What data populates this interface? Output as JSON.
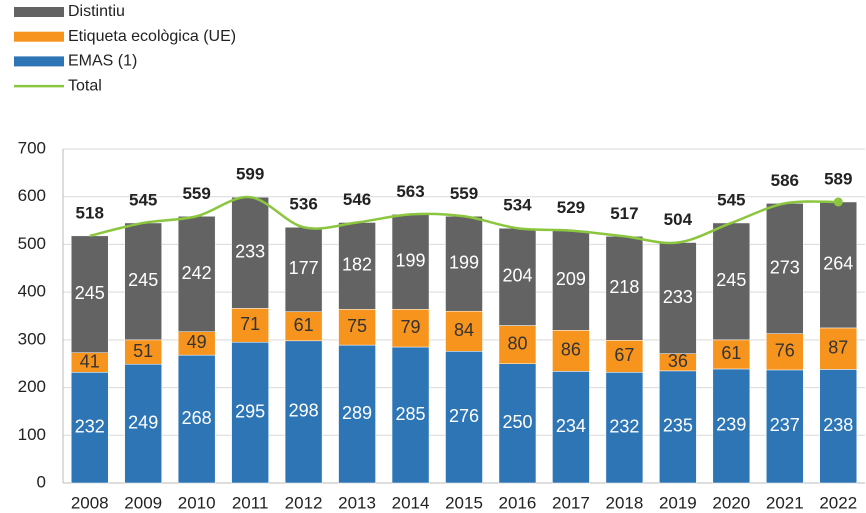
{
  "chart_data": {
    "type": "bar",
    "stacked": true,
    "categories": [
      "2008",
      "2009",
      "2010",
      "2011",
      "2012",
      "2013",
      "2014",
      "2015",
      "2016",
      "2017",
      "2018",
      "2019",
      "2020",
      "2021",
      "2022"
    ],
    "series": [
      {
        "name": "Distintiu",
        "color": "#636363",
        "label_color": "#ffffff",
        "values": [
          245,
          245,
          242,
          233,
          177,
          182,
          199,
          199,
          204,
          209,
          218,
          233,
          245,
          273,
          264
        ]
      },
      {
        "name": "Etiqueta ecològica (UE)",
        "color": "#f7941d",
        "label_color": "#333333",
        "values": [
          41,
          51,
          49,
          71,
          61,
          75,
          79,
          84,
          80,
          86,
          67,
          36,
          61,
          76,
          87
        ]
      },
      {
        "name": "EMAS (1)",
        "color": "#2e75b6",
        "label_color": "#ffffff",
        "values": [
          232,
          249,
          268,
          295,
          298,
          289,
          285,
          276,
          250,
          234,
          232,
          235,
          239,
          237,
          238
        ]
      },
      {
        "name": "Total",
        "type": "line",
        "color": "#8cc63f",
        "values": [
          518,
          545,
          559,
          599,
          536,
          546,
          563,
          559,
          534,
          529,
          517,
          504,
          545,
          586,
          589
        ]
      }
    ],
    "ylim": [
      0,
      700
    ],
    "yticks": [
      0,
      100,
      200,
      300,
      400,
      500,
      600,
      700
    ],
    "grid": true
  }
}
